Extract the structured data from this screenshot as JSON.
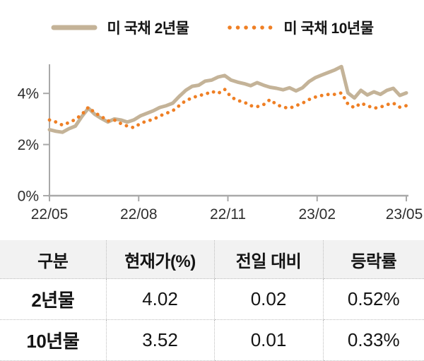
{
  "legend": {
    "items": [
      {
        "label": "미 국채 2년물"
      },
      {
        "label": "미 국채 10년물"
      }
    ]
  },
  "chart_data": {
    "type": "line",
    "title": "",
    "xlabel": "",
    "ylabel": "",
    "x_tick_labels": [
      "22/05",
      "22/08",
      "22/11",
      "23/02",
      "23/05"
    ],
    "yticks": {
      "values": [
        4,
        2,
        0
      ],
      "labels": [
        "4%",
        "2%",
        "0%"
      ]
    },
    "ylim": [
      0,
      5.2
    ],
    "grid": false,
    "legend_position": "top",
    "axis_color": "#a9a9a9",
    "series": [
      {
        "name": "미 국채 2년물",
        "style": "solid",
        "color": "#c4b398",
        "values": [
          2.58,
          2.52,
          2.48,
          2.62,
          2.72,
          3.1,
          3.42,
          3.18,
          3.02,
          2.88,
          3.0,
          2.96,
          2.88,
          2.96,
          3.12,
          3.22,
          3.32,
          3.45,
          3.52,
          3.62,
          3.88,
          4.12,
          4.28,
          4.32,
          4.48,
          4.52,
          4.64,
          4.7,
          4.52,
          4.44,
          4.38,
          4.3,
          4.42,
          4.32,
          4.24,
          4.2,
          4.14,
          4.22,
          4.1,
          4.22,
          4.46,
          4.62,
          4.72,
          4.82,
          4.92,
          5.05,
          4.02,
          3.82,
          4.12,
          3.94,
          4.06,
          3.96,
          4.12,
          4.2,
          3.92,
          4.02
        ]
      },
      {
        "name": "미 국채 10년물",
        "style": "dotted",
        "color": "#ef7f24",
        "values": [
          2.96,
          2.88,
          2.76,
          2.86,
          2.98,
          3.18,
          3.46,
          3.24,
          3.1,
          2.92,
          2.96,
          2.82,
          2.72,
          2.66,
          2.82,
          2.92,
          2.98,
          3.12,
          3.22,
          3.32,
          3.52,
          3.72,
          3.82,
          3.92,
          3.96,
          4.08,
          4.0,
          4.16,
          3.86,
          3.72,
          3.66,
          3.52,
          3.48,
          3.56,
          3.76,
          3.56,
          3.46,
          3.42,
          3.52,
          3.62,
          3.76,
          3.86,
          3.92,
          3.96,
          3.96,
          4.02,
          3.58,
          3.44,
          3.62,
          3.52,
          3.42,
          3.46,
          3.56,
          3.62,
          3.46,
          3.52
        ]
      }
    ]
  },
  "table": {
    "columns": [
      "구분",
      "현재가(%)",
      "전일 대비",
      "등락률"
    ],
    "rows": [
      [
        "2년물",
        "4.02",
        "0.02",
        "0.52%"
      ],
      [
        "10년물",
        "3.52",
        "0.01",
        "0.33%"
      ]
    ]
  }
}
